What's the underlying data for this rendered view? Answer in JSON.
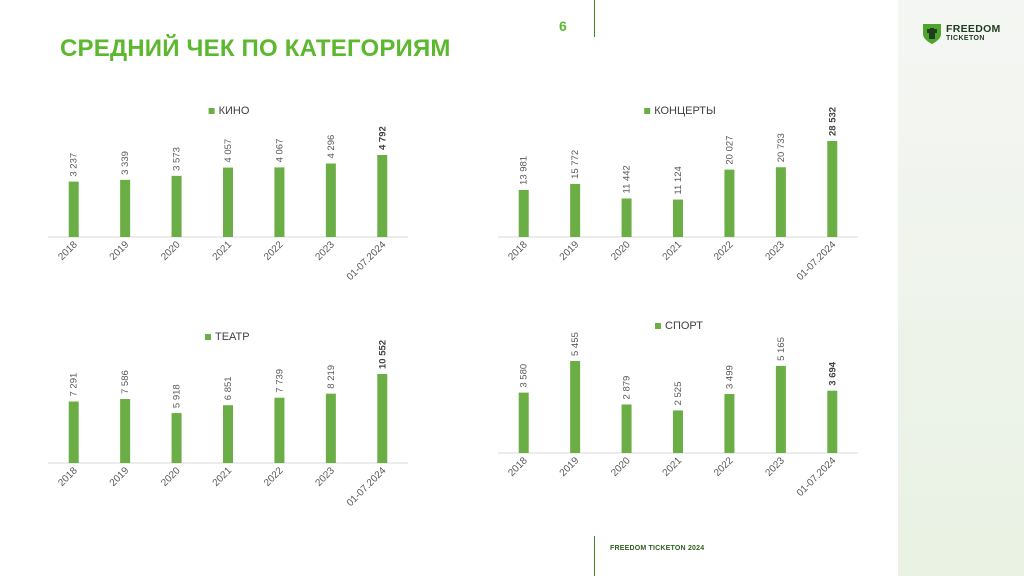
{
  "header": {
    "title": "СРЕДНИЙ ЧЕК ПО КАТЕГОРИЯМ",
    "page_number": "6"
  },
  "logo": {
    "line1": "FREEDOM",
    "line2": "TICKETON"
  },
  "footer": {
    "text": "FREEDOM TICKETON 2024"
  },
  "colors": {
    "accent": "#5cb82e",
    "bar": "#6aae45",
    "axis": "#d9d9d9",
    "label": "#595959"
  },
  "chart_data": [
    {
      "type": "bar",
      "legend": "КИНО",
      "categories": [
        "2018",
        "2019",
        "2020",
        "2021",
        "2022",
        "2023",
        "01-07.2024"
      ],
      "values": [
        3237,
        3339,
        3573,
        4057,
        4067,
        4296,
        4792
      ],
      "labels": [
        "3 237",
        "3 339",
        "3 573",
        "4 057",
        "4 067",
        "4 296",
        "4 792"
      ],
      "bold_last": true
    },
    {
      "type": "bar",
      "legend": "КОНЦЕРТЫ",
      "categories": [
        "2018",
        "2019",
        "2020",
        "2021",
        "2022",
        "2023",
        "01-07.2024"
      ],
      "values": [
        13981,
        15772,
        11442,
        11124,
        20027,
        20733,
        28532
      ],
      "labels": [
        "13 981",
        "15 772",
        "11 442",
        "11 124",
        "20 027",
        "20 733",
        "28 532"
      ],
      "bold_last": true
    },
    {
      "type": "bar",
      "legend": "ТЕАТР",
      "categories": [
        "2018",
        "2019",
        "2020",
        "2021",
        "2022",
        "2023",
        "01-07.2024"
      ],
      "values": [
        7291,
        7586,
        5918,
        6851,
        7739,
        8219,
        10552
      ],
      "labels": [
        "7 291",
        "7 586",
        "5 918",
        "6 851",
        "7 739",
        "8 219",
        "10 552"
      ],
      "bold_last": true
    },
    {
      "type": "bar",
      "legend": "СПОРТ",
      "categories": [
        "2018",
        "2019",
        "2020",
        "2021",
        "2022",
        "2023",
        "01-07.2024"
      ],
      "values": [
        3580,
        5455,
        2879,
        2525,
        3499,
        5165,
        3694
      ],
      "labels": [
        "3 580",
        "5 455",
        "2 879",
        "2 525",
        "3 499",
        "5 165",
        "3 694"
      ],
      "bold_last": true
    }
  ]
}
